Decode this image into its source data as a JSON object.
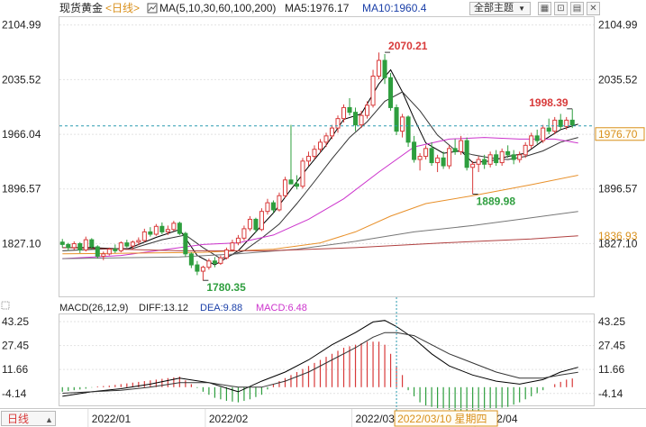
{
  "header": {
    "instrument": "现货黄金",
    "period_tag": "<日线>",
    "ma_settings": "MA(5,10,30,60,100,200)",
    "ma5_label": "MA5:1976.17",
    "ma10_label": "MA10:1960.4",
    "theme_button": "全部主题",
    "theme_arrow": "▼"
  },
  "toolbar_icons": [
    "grid-icon",
    "fullscreen-icon",
    "split-icon",
    "close-icon"
  ],
  "toolbar_glyphs": [
    "▦",
    "⊡",
    "▤",
    "✕"
  ],
  "colors": {
    "up": "#d83a3a",
    "down": "#2e9e3e",
    "ma5": "#000000",
    "ma10": "#333333",
    "ma30": "#cc33cc",
    "ma60": "#e8902a",
    "ma100": "#777777",
    "ma200": "#b04040",
    "dif": "#000000",
    "dea": "#333333",
    "cursor": "#2a9bb0",
    "highlight": "#d9901c"
  },
  "macd_header": {
    "settings": "MACD(26,12,9)",
    "diff": "DIFF:13.12",
    "dea": "DEA:9.88",
    "macd": "MACD:6.48"
  },
  "bottom_bar": {
    "period_button": "日线",
    "hover_date": "2022/03/10 星期四"
  },
  "chart_data": {
    "type": "candlestick",
    "price_axis": {
      "ticks": [
        "2104.99",
        "2035.52",
        "1966.04",
        "1896.57",
        "1827.10"
      ],
      "tick_values": [
        2104.99,
        2035.52,
        1966.04,
        1896.57,
        1827.1
      ],
      "range": [
        1760,
        2115
      ]
    },
    "last_price_label": "1976.70",
    "last_price": 1976.7,
    "ma200_label": "1836.93",
    "ma200_value": 1836.93,
    "annotations": [
      {
        "text": "2070.21",
        "value": 2070.21,
        "bar": 55,
        "kind": "high"
      },
      {
        "text": "1998.39",
        "value": 1998.39,
        "bar": 87,
        "kind": "high"
      },
      {
        "text": "1889.98",
        "value": 1889.98,
        "bar": 70,
        "kind": "low"
      },
      {
        "text": "1780.35",
        "value": 1780.35,
        "bar": 24,
        "kind": "low"
      }
    ],
    "x_labels": [
      "2022/01",
      "2022/02",
      "2022/03",
      "2022/04"
    ],
    "x_label_bars": [
      5,
      25,
      50,
      71
    ],
    "candles": [
      [
        1829,
        1833,
        1822,
        1826
      ],
      [
        1826,
        1828,
        1818,
        1822
      ],
      [
        1822,
        1830,
        1819,
        1827
      ],
      [
        1827,
        1829,
        1815,
        1819
      ],
      [
        1819,
        1836,
        1817,
        1832
      ],
      [
        1832,
        1834,
        1820,
        1823
      ],
      [
        1823,
        1825,
        1808,
        1811
      ],
      [
        1811,
        1817,
        1806,
        1814
      ],
      [
        1814,
        1822,
        1812,
        1820
      ],
      [
        1820,
        1826,
        1815,
        1818
      ],
      [
        1818,
        1830,
        1816,
        1828
      ],
      [
        1828,
        1832,
        1822,
        1824
      ],
      [
        1824,
        1831,
        1820,
        1829
      ],
      [
        1829,
        1835,
        1825,
        1831
      ],
      [
        1831,
        1846,
        1829,
        1842
      ],
      [
        1842,
        1848,
        1836,
        1839
      ],
      [
        1839,
        1852,
        1837,
        1849
      ],
      [
        1849,
        1854,
        1839,
        1842
      ],
      [
        1842,
        1850,
        1838,
        1845
      ],
      [
        1845,
        1856,
        1843,
        1853
      ],
      [
        1853,
        1855,
        1838,
        1840
      ],
      [
        1840,
        1842,
        1810,
        1814
      ],
      [
        1814,
        1816,
        1796,
        1800
      ],
      [
        1800,
        1805,
        1787,
        1792
      ],
      [
        1792,
        1799,
        1780,
        1797
      ],
      [
        1797,
        1808,
        1794,
        1805
      ],
      [
        1805,
        1810,
        1797,
        1802
      ],
      [
        1802,
        1812,
        1800,
        1809
      ],
      [
        1809,
        1822,
        1807,
        1819
      ],
      [
        1819,
        1832,
        1817,
        1828
      ],
      [
        1828,
        1838,
        1825,
        1834
      ],
      [
        1834,
        1850,
        1831,
        1846
      ],
      [
        1846,
        1862,
        1843,
        1858
      ],
      [
        1858,
        1860,
        1841,
        1845
      ],
      [
        1845,
        1872,
        1843,
        1868
      ],
      [
        1868,
        1884,
        1864,
        1879
      ],
      [
        1879,
        1882,
        1866,
        1870
      ],
      [
        1870,
        1892,
        1868,
        1888
      ],
      [
        1888,
        1912,
        1885,
        1908
      ],
      [
        1908,
        1978,
        1905,
        1903
      ],
      [
        1903,
        1914,
        1896,
        1900
      ],
      [
        1900,
        1936,
        1897,
        1932
      ],
      [
        1932,
        1944,
        1926,
        1938
      ],
      [
        1938,
        1952,
        1934,
        1947
      ],
      [
        1947,
        1960,
        1943,
        1956
      ],
      [
        1956,
        1968,
        1950,
        1964
      ],
      [
        1964,
        1978,
        1960,
        1974
      ],
      [
        1974,
        1990,
        1968,
        1986
      ],
      [
        1986,
        2004,
        1981,
        2000
      ],
      [
        2000,
        2012,
        1990,
        1994
      ],
      [
        1994,
        2000,
        1970,
        1978
      ],
      [
        1978,
        1996,
        1974,
        1990
      ],
      [
        1990,
        2008,
        1986,
        2003
      ],
      [
        2003,
        2048,
        2000,
        2040
      ],
      [
        2040,
        2070,
        2036,
        2060
      ],
      [
        2060,
        2068,
        2030,
        2038
      ],
      [
        2038,
        2044,
        1996,
        2000
      ],
      [
        2000,
        2004,
        1965,
        1970
      ],
      [
        1970,
        1992,
        1962,
        1988
      ],
      [
        1988,
        1990,
        1950,
        1956
      ],
      [
        1956,
        1964,
        1930,
        1934
      ],
      [
        1934,
        1942,
        1920,
        1938
      ],
      [
        1938,
        1952,
        1934,
        1948
      ],
      [
        1948,
        1956,
        1926,
        1930
      ],
      [
        1930,
        1940,
        1918,
        1936
      ],
      [
        1936,
        1944,
        1922,
        1926
      ],
      [
        1926,
        1952,
        1922,
        1948
      ],
      [
        1948,
        1960,
        1940,
        1944
      ],
      [
        1944,
        1964,
        1940,
        1958
      ],
      [
        1958,
        1962,
        1920,
        1924
      ],
      [
        1924,
        1932,
        1890,
        1928
      ],
      [
        1928,
        1938,
        1918,
        1934
      ],
      [
        1934,
        1940,
        1922,
        1928
      ],
      [
        1928,
        1944,
        1924,
        1940
      ],
      [
        1940,
        1946,
        1926,
        1930
      ],
      [
        1930,
        1948,
        1926,
        1944
      ],
      [
        1944,
        1952,
        1936,
        1940
      ],
      [
        1940,
        1946,
        1928,
        1934
      ],
      [
        1934,
        1944,
        1930,
        1940
      ],
      [
        1940,
        1956,
        1936,
        1952
      ],
      [
        1952,
        1968,
        1948,
        1964
      ],
      [
        1964,
        1972,
        1954,
        1958
      ],
      [
        1958,
        1978,
        1955,
        1974
      ],
      [
        1974,
        1986,
        1966,
        1970
      ],
      [
        1970,
        1988,
        1966,
        1984
      ],
      [
        1984,
        1992,
        1972,
        1976
      ],
      [
        1976,
        1988,
        1972,
        1984
      ],
      [
        1984,
        1998,
        1974,
        1978
      ]
    ],
    "ma_series": [
      {
        "key": "ma5",
        "points": [
          [
            0,
            1822
          ],
          [
            5,
            1822
          ],
          [
            11,
            1820
          ],
          [
            16,
            1835
          ],
          [
            20,
            1845
          ],
          [
            23,
            1812
          ],
          [
            26,
            1800
          ],
          [
            30,
            1818
          ],
          [
            33,
            1842
          ],
          [
            36,
            1866
          ],
          [
            39,
            1896
          ],
          [
            42,
            1925
          ],
          [
            45,
            1952
          ],
          [
            48,
            1985
          ],
          [
            51,
            1992
          ],
          [
            54,
            2030
          ],
          [
            56,
            2048
          ],
          [
            58,
            2020
          ],
          [
            60,
            1986
          ],
          [
            62,
            1955
          ],
          [
            65,
            1942
          ],
          [
            68,
            1945
          ],
          [
            70,
            1930
          ],
          [
            73,
            1932
          ],
          [
            76,
            1938
          ],
          [
            79,
            1942
          ],
          [
            82,
            1958
          ],
          [
            85,
            1972
          ],
          [
            88,
            1979
          ]
        ]
      },
      {
        "key": "ma10",
        "points": [
          [
            0,
            1818
          ],
          [
            6,
            1820
          ],
          [
            12,
            1821
          ],
          [
            17,
            1832
          ],
          [
            21,
            1838
          ],
          [
            24,
            1822
          ],
          [
            27,
            1808
          ],
          [
            31,
            1818
          ],
          [
            34,
            1834
          ],
          [
            37,
            1852
          ],
          [
            40,
            1878
          ],
          [
            43,
            1906
          ],
          [
            46,
            1935
          ],
          [
            49,
            1962
          ],
          [
            52,
            1982
          ],
          [
            55,
            2008
          ],
          [
            58,
            2020
          ],
          [
            61,
            1996
          ],
          [
            64,
            1965
          ],
          [
            67,
            1946
          ],
          [
            70,
            1940
          ],
          [
            73,
            1936
          ],
          [
            76,
            1934
          ],
          [
            79,
            1938
          ],
          [
            82,
            1945
          ],
          [
            85,
            1956
          ],
          [
            88,
            1962
          ]
        ]
      },
      {
        "key": "ma30",
        "points": [
          [
            0,
            1808
          ],
          [
            10,
            1812
          ],
          [
            18,
            1820
          ],
          [
            24,
            1826
          ],
          [
            30,
            1828
          ],
          [
            36,
            1838
          ],
          [
            42,
            1858
          ],
          [
            48,
            1884
          ],
          [
            54,
            1918
          ],
          [
            60,
            1950
          ],
          [
            66,
            1960
          ],
          [
            72,
            1962
          ],
          [
            78,
            1960
          ],
          [
            84,
            1960
          ],
          [
            88,
            1955
          ]
        ]
      },
      {
        "key": "ma60",
        "points": [
          [
            0,
            1814
          ],
          [
            12,
            1815
          ],
          [
            24,
            1816
          ],
          [
            36,
            1820
          ],
          [
            44,
            1828
          ],
          [
            50,
            1842
          ],
          [
            56,
            1862
          ],
          [
            62,
            1878
          ],
          [
            70,
            1888
          ],
          [
            80,
            1902
          ],
          [
            88,
            1914
          ]
        ]
      },
      {
        "key": "ma100",
        "points": [
          [
            0,
            1808
          ],
          [
            20,
            1810
          ],
          [
            30,
            1814
          ],
          [
            40,
            1820
          ],
          [
            50,
            1830
          ],
          [
            60,
            1842
          ],
          [
            70,
            1850
          ],
          [
            80,
            1860
          ],
          [
            88,
            1868
          ]
        ]
      },
      {
        "key": "ma200",
        "points": [
          [
            0,
            1822
          ],
          [
            20,
            1818
          ],
          [
            35,
            1818
          ],
          [
            50,
            1822
          ],
          [
            65,
            1828
          ],
          [
            80,
            1833
          ],
          [
            88,
            1836.93
          ]
        ]
      }
    ],
    "macd": {
      "axis_ticks": [
        "43.25",
        "27.45",
        "11.66",
        "-4.14"
      ],
      "axis_tick_values": [
        43.25,
        27.45,
        11.66,
        -4.14
      ],
      "range": [
        -12,
        48
      ],
      "dif": [
        [
          0,
          -6
        ],
        [
          5,
          -3
        ],
        [
          10,
          -1
        ],
        [
          15,
          2
        ],
        [
          20,
          6
        ],
        [
          25,
          3
        ],
        [
          30,
          -3
        ],
        [
          34,
          4
        ],
        [
          38,
          10
        ],
        [
          42,
          18
        ],
        [
          46,
          28
        ],
        [
          50,
          36
        ],
        [
          53,
          43
        ],
        [
          55,
          44
        ],
        [
          57,
          40
        ],
        [
          60,
          32
        ],
        [
          63,
          22
        ],
        [
          66,
          14
        ],
        [
          70,
          8
        ],
        [
          74,
          4
        ],
        [
          78,
          2
        ],
        [
          82,
          5
        ],
        [
          85,
          10
        ],
        [
          88,
          13.12
        ]
      ],
      "dea": [
        [
          0,
          -4
        ],
        [
          5,
          -3
        ],
        [
          10,
          -2
        ],
        [
          15,
          0
        ],
        [
          20,
          3
        ],
        [
          25,
          3
        ],
        [
          30,
          0
        ],
        [
          34,
          0
        ],
        [
          38,
          4
        ],
        [
          42,
          10
        ],
        [
          46,
          18
        ],
        [
          50,
          26
        ],
        [
          53,
          33
        ],
        [
          55,
          36
        ],
        [
          57,
          36
        ],
        [
          60,
          34
        ],
        [
          63,
          28
        ],
        [
          66,
          22
        ],
        [
          70,
          16
        ],
        [
          74,
          10
        ],
        [
          78,
          6
        ],
        [
          82,
          6
        ],
        [
          85,
          8
        ],
        [
          88,
          9.88
        ]
      ],
      "hist": [
        [
          0,
          -3
        ],
        [
          2,
          -2
        ],
        [
          4,
          -1
        ],
        [
          6,
          0.5
        ],
        [
          8,
          1
        ],
        [
          10,
          2
        ],
        [
          12,
          3
        ],
        [
          14,
          4
        ],
        [
          16,
          5
        ],
        [
          18,
          6
        ],
        [
          20,
          7
        ],
        [
          22,
          2
        ],
        [
          24,
          -3
        ],
        [
          26,
          -7
        ],
        [
          28,
          -9
        ],
        [
          30,
          -10
        ],
        [
          32,
          -8
        ],
        [
          34,
          -5
        ],
        [
          36,
          2
        ],
        [
          38,
          6
        ],
        [
          40,
          10
        ],
        [
          42,
          14
        ],
        [
          44,
          18
        ],
        [
          46,
          22
        ],
        [
          48,
          26
        ],
        [
          50,
          28
        ],
        [
          52,
          30
        ],
        [
          54,
          30
        ],
        [
          55,
          28
        ],
        [
          56,
          22
        ],
        [
          57,
          14
        ],
        [
          58,
          8
        ],
        [
          59,
          -2
        ],
        [
          60,
          -6
        ],
        [
          61,
          -10
        ],
        [
          62,
          -12
        ],
        [
          64,
          -14
        ],
        [
          66,
          -15
        ],
        [
          68,
          -16
        ],
        [
          70,
          -16
        ],
        [
          72,
          -15
        ],
        [
          74,
          -14
        ],
        [
          76,
          -13
        ],
        [
          78,
          -10
        ],
        [
          80,
          -6
        ],
        [
          82,
          -2
        ],
        [
          84,
          2
        ],
        [
          86,
          5
        ],
        [
          88,
          6.48
        ]
      ]
    }
  }
}
